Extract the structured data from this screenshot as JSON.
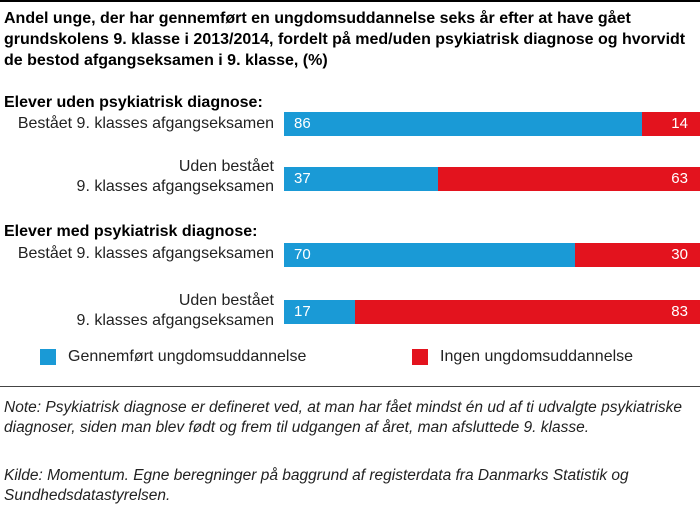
{
  "chart_data": {
    "type": "bar",
    "orientation": "horizontal",
    "stacked": true,
    "title": "Andel unge, der har gennemført en ungdomsuddannelse seks år efter at have gået grundskolens 9. klasse i 2013/2014, fordelt på med/uden psykiatrisk diagnose og hvorvidt de bestod afgangseksamen i 9. klasse, (%)",
    "groups": [
      {
        "header": "Elever uden psykiatrisk diagnose:",
        "rows": [
          {
            "label_lines": [
              "Bestået 9. klasses afgangseksamen"
            ],
            "values": [
              86,
              14
            ]
          },
          {
            "label_lines": [
              "Uden bestået",
              "9. klasses afgangseksamen"
            ],
            "values": [
              37,
              63
            ]
          }
        ]
      },
      {
        "header": "Elever med psykiatrisk diagnose:",
        "rows": [
          {
            "label_lines": [
              "Bestået 9. klasses afgangseksamen"
            ],
            "values": [
              70,
              30
            ]
          },
          {
            "label_lines": [
              "Uden bestået",
              "9. klasses afgangseksamen"
            ],
            "values": [
              17,
              83
            ]
          }
        ]
      }
    ],
    "series": [
      {
        "name": "Gennemført ungdomsuddannelse",
        "color": "#1a9ad6"
      },
      {
        "name": "Ingen ungdomsuddannelse",
        "color": "#e3131e"
      }
    ],
    "xlim": [
      0,
      100
    ],
    "legend": "bottom"
  },
  "notes": {
    "note": "Note: Psykiatrisk diagnose er defineret ved, at man har fået mindst én ud af ti udvalgte psykiatriske diagnoser, siden man blev født og frem til udgangen af året, man afsluttede 9. klasse.",
    "source": "Kilde: Momentum. Egne beregninger på baggrund af registerdata fra Danmarks Statistik og Sundhedsdatastyrelsen."
  }
}
